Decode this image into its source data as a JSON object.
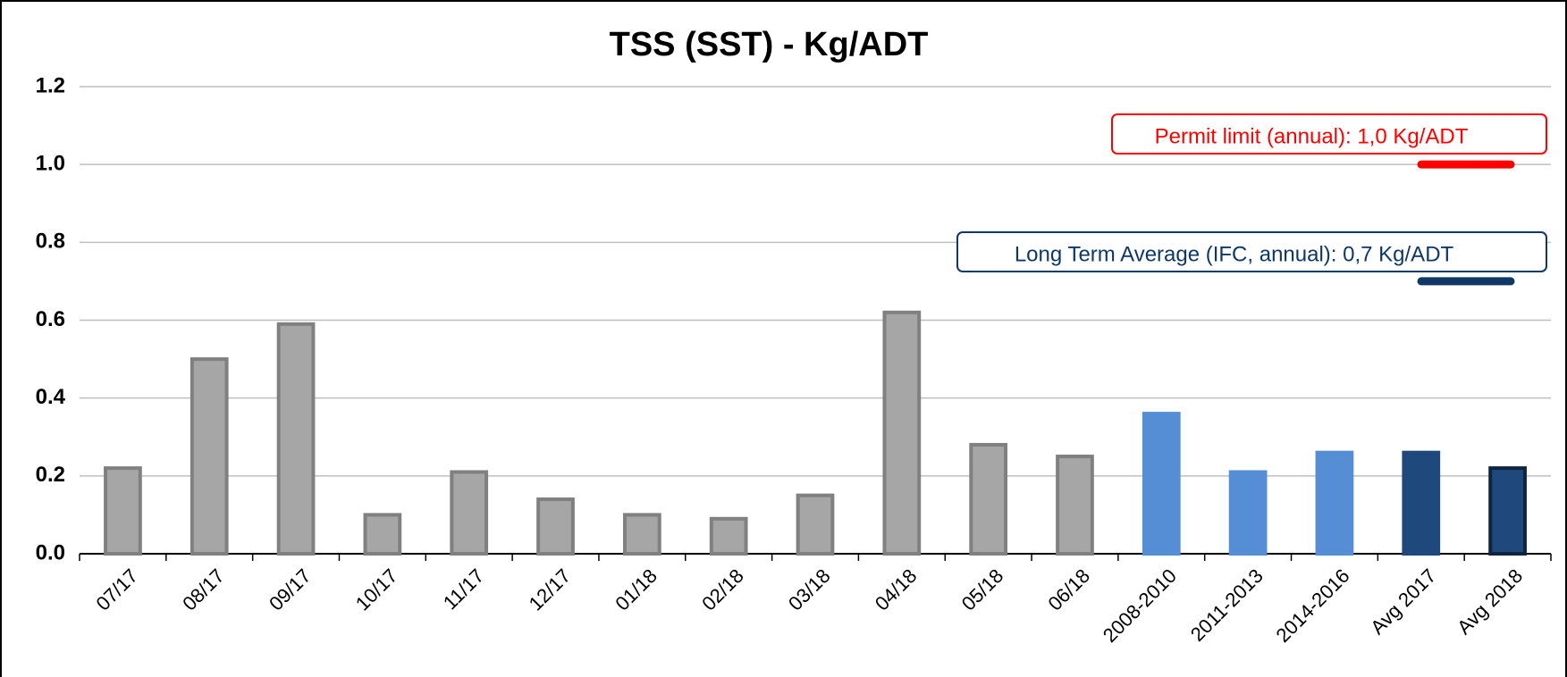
{
  "chart_data": {
    "type": "bar",
    "title": "TSS (SST) - Kg/ADT",
    "categories": [
      "07/17",
      "08/17",
      "09/17",
      "10/17",
      "11/17",
      "12/17",
      "01/18",
      "02/18",
      "03/18",
      "04/18",
      "05/18",
      "06/18",
      "2008-2010",
      "2011-2013",
      "2014-2016",
      "Avg 2017",
      "Avg 2018"
    ],
    "values": [
      0.22,
      0.5,
      0.59,
      0.1,
      0.21,
      0.14,
      0.1,
      0.09,
      0.15,
      0.62,
      0.28,
      0.25,
      0.36,
      0.21,
      0.26,
      0.26,
      0.22
    ],
    "colors": [
      "#a6a6a6",
      "#a6a6a6",
      "#a6a6a6",
      "#a6a6a6",
      "#a6a6a6",
      "#a6a6a6",
      "#a6a6a6",
      "#a6a6a6",
      "#a6a6a6",
      "#a6a6a6",
      "#a6a6a6",
      "#a6a6a6",
      "#558ed5",
      "#558ed5",
      "#558ed5",
      "#1f497d",
      "#1f497d"
    ],
    "ylim": [
      0,
      1.2
    ],
    "yticks": [
      {
        "value": 0,
        "label": "0.0"
      },
      0.2,
      0.4,
      0.6,
      0.8,
      {
        "value": 1,
        "label": "1.0"
      },
      1.2
    ],
    "grid": true,
    "reference_lines": [
      {
        "label": "Permit limit (annual): 1,0 Kg/ADT",
        "value": 1,
        "color": "#ff0000"
      },
      {
        "label": "Long Term Average (IFC, annual): 0,7 Kg/ADT",
        "value": 0.7,
        "color": "#0f3864"
      }
    ]
  }
}
